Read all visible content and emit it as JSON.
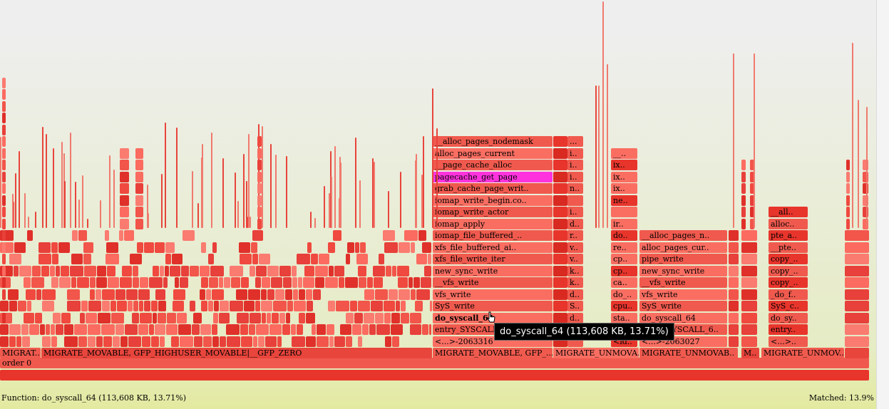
{
  "status": {
    "function_text": "Function: do_syscall_64 (113,608 KB, 13.71%)",
    "matched_text": "Matched: 13.9%"
  },
  "tooltip": "do_syscall_64 (113,608 KB, 13.71%)",
  "colors": {
    "flame_dark": "#e0302a",
    "flame_mid": "#f2554a",
    "flame_light": "#fb6b60",
    "search_highlight": "#ff33dd"
  },
  "frames": {
    "order0": "order 0",
    "migrate_a": "MIGRAT..",
    "migrate_b": "MIGRATE_MOVABLE, GFP_HIGHUSER_MOVABLE|__GFP_ZERO",
    "migrate_c": "MIGRATE_MOVABLE, GFP_...",
    "migrate_d": "MIGRATE_UNMOVA..",
    "migrate_e": "MIGRATE_UNMOVAB..",
    "migrate_f": "M..",
    "migrate_g": "MIGRATE_UNMOV..",
    "col1": [
      "<...>-2063316",
      "entry_SYSCALL_64",
      "do_syscall_64",
      "SyS_write",
      "vfs_write",
      "__vfs_write",
      "new_sync_write",
      "xfs_file_write_iter",
      "xfs_file_buffered_ai..",
      "iomap_file_buffered_..",
      "iomap_apply",
      "iomap_write_actor",
      "iomap_write_begin.co..",
      "grab_cache_page_writ..",
      "pagecache_get_page",
      "__page_cache_alloc",
      "alloc_pages_current",
      "__alloc_pages_nodemask"
    ],
    "col2": [
      "",
      "",
      "d..",
      "S..",
      "d..",
      "k..",
      "k..",
      "v..",
      "v..",
      "r..",
      "d..",
      "i..",
      "",
      "n..",
      "i..",
      "i..",
      "i..",
      "..."
    ],
    "col3": [
      "<id..",
      "",
      "sta..",
      "cpu..",
      "do_..",
      "ca..",
      "cp..",
      "cp..",
      "re..",
      "do..",
      "ir..",
      "",
      "ne..",
      "ix..",
      "ix..",
      "ix..",
      "__.."
    ],
    "col4": [
      "<...>-2063027",
      "entry_SYSCALL_6..",
      "do_syscall_64",
      "SyS_write",
      "vfs_write",
      "__vfs_write",
      "new_sync_write",
      "pipe_write",
      "alloc_pages_cur..",
      "__alloc_pages_n.."
    ],
    "col5": [
      "<...>..",
      "entry..",
      "do_sy..",
      "SyS_c..",
      "_do_f..",
      "copy_..",
      "copy_..",
      "copy_..",
      "__pte..",
      "pte_a..",
      "alloc..",
      "__all.."
    ]
  }
}
